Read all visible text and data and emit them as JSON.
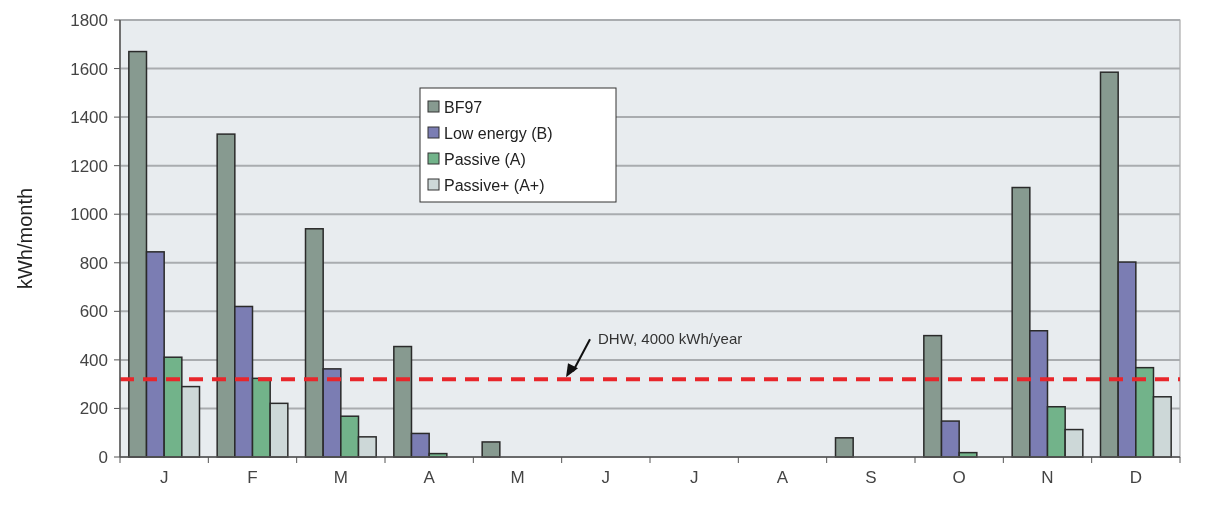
{
  "chart_data": {
    "type": "bar",
    "ylabel": "kWh/month",
    "categories": [
      "J",
      "F",
      "M",
      "A",
      "M",
      "J",
      "J",
      "A",
      "S",
      "O",
      "N",
      "D"
    ],
    "series": [
      {
        "name": "BF97",
        "color": "#879a90",
        "values": [
          1670,
          1330,
          940,
          455,
          62,
          null,
          null,
          null,
          79,
          500,
          1110,
          1585
        ]
      },
      {
        "name": "Low energy (B)",
        "color": "#7b7db3",
        "values": [
          845,
          620,
          363,
          97,
          null,
          null,
          null,
          null,
          null,
          148,
          520,
          803
        ]
      },
      {
        "name": "Passive (A)",
        "color": "#72b38a",
        "values": [
          411,
          324,
          168,
          14,
          null,
          null,
          null,
          null,
          null,
          18,
          207,
          368
        ]
      },
      {
        "name": "Passive+ (A+)",
        "color": "#cdd8d8",
        "values": [
          290,
          221,
          83,
          null,
          null,
          null,
          null,
          null,
          null,
          null,
          113,
          248
        ]
      }
    ],
    "ylim": [
      0,
      1800
    ],
    "yticks": [
      0,
      200,
      400,
      600,
      800,
      1000,
      1200,
      1400,
      1600,
      1800
    ],
    "grid": "y",
    "legend": "top",
    "ref_lines": [
      {
        "axis": "y",
        "value": 320,
        "label": "DHW, 4000 kWh/year",
        "color": "#e8262b",
        "line_style": "dashed"
      }
    ]
  }
}
